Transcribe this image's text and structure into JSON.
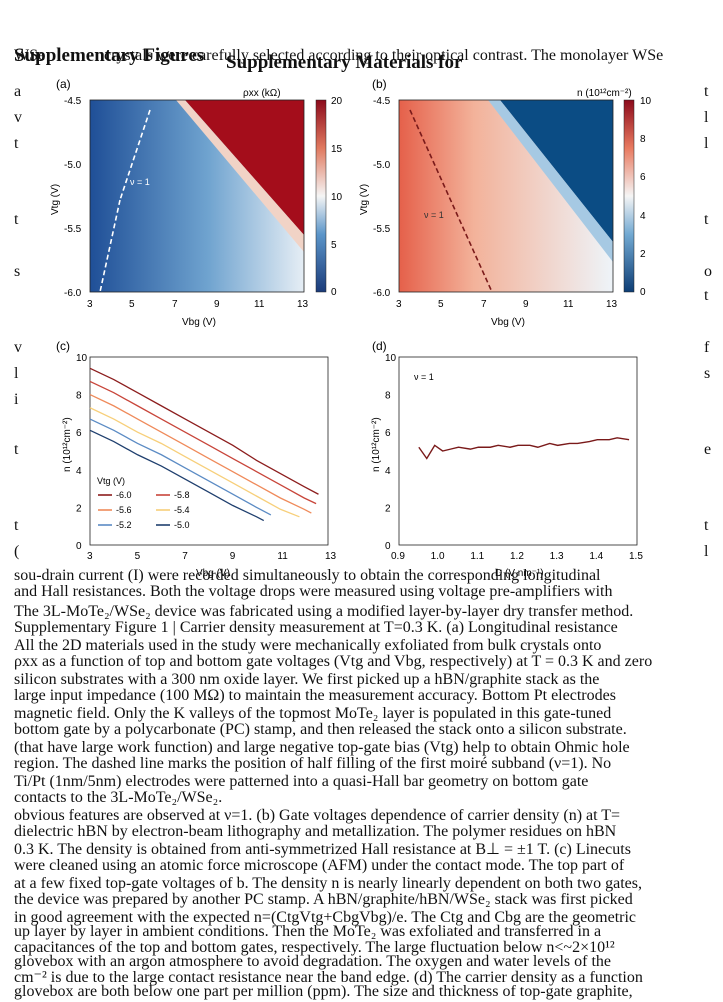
{
  "header": {
    "overlap_title": "Supplementary Figures",
    "overlap_1": "WSe",
    "overlap_2": "crystals were carefully selected according to their optical contrast. The monolayer WSe",
    "main_title": "Supplementary Materials for"
  },
  "panels": {
    "a": {
      "label": "(a)",
      "cbar_title": "ρxx (kΩ)",
      "cbar_ticks": [
        "20",
        "15",
        "10",
        "5",
        "0"
      ],
      "yticks": [
        "-4.5",
        "-5.0",
        "-5.5",
        "-6.0"
      ],
      "xticks": [
        "3",
        "5",
        "7",
        "9",
        "11",
        "13"
      ],
      "ylabel": "Vtg (V)",
      "xlabel": "Vbg (V)",
      "annotation": "ν = 1"
    },
    "b": {
      "label": "(b)",
      "cbar_title": "n (10¹²cm⁻²)",
      "cbar_ticks": [
        "10",
        "8",
        "6",
        "4",
        "2",
        "0"
      ],
      "yticks": [
        "-4.5",
        "-5.0",
        "-5.5",
        "-6.0"
      ],
      "xticks": [
        "3",
        "5",
        "7",
        "9",
        "11",
        "13"
      ],
      "ylabel": "Vtg (V)",
      "xlabel": "Vbg (V)",
      "annotation": "ν = 1"
    },
    "c": {
      "label": "(c)",
      "yticks": [
        "10",
        "8",
        "6",
        "4",
        "2",
        "0"
      ],
      "xticks": [
        "3",
        "5",
        "7",
        "9",
        "11",
        "13"
      ],
      "ylabel": "n (10¹²cm⁻²)",
      "xlabel": "Vbg (V)",
      "legend_title": "Vtg (V)"
    },
    "d": {
      "label": "(d)",
      "yticks": [
        "10",
        "8",
        "6",
        "4",
        "2",
        "0"
      ],
      "xticks": [
        "0.9",
        "1.0",
        "1.1",
        "1.2",
        "1.3",
        "1.4",
        "1.5"
      ],
      "ylabel": "n (10¹²cm⁻²)",
      "xlabel": "D (V nm⁻¹)",
      "annotation": "ν = 1"
    }
  },
  "chart_data": [
    {
      "type": "heatmap",
      "title": "(a)",
      "xlabel": "Vbg (V)",
      "ylabel": "Vtg (V)",
      "xlim": [
        3,
        13
      ],
      "ylim": [
        -6.0,
        -4.5
      ],
      "colorbar": {
        "label": "ρxx (kΩ)",
        "range": [
          0,
          20
        ]
      },
      "annotation": "ν = 1 (dashed line)"
    },
    {
      "type": "heatmap",
      "title": "(b)",
      "xlabel": "Vbg (V)",
      "ylabel": "Vtg (V)",
      "xlim": [
        3,
        13
      ],
      "ylim": [
        -6.0,
        -4.5
      ],
      "colorbar": {
        "label": "n (10¹²cm⁻²)",
        "range": [
          0,
          10
        ]
      },
      "annotation": "ν = 1 (dashed line)"
    },
    {
      "type": "line",
      "title": "(c)",
      "xlabel": "Vbg (V)",
      "ylabel": "n (10¹²cm⁻²)",
      "xlim": [
        3,
        13
      ],
      "ylim": [
        0,
        10
      ],
      "legend_title": "Vtg (V)",
      "series": [
        {
          "name": "-6.0",
          "color": "#8c1d1d",
          "x": [
            3,
            4,
            5,
            6,
            7,
            8,
            9,
            10,
            11,
            12,
            12.6
          ],
          "values": [
            9.4,
            8.8,
            8.1,
            7.4,
            6.7,
            6.0,
            5.3,
            4.5,
            3.8,
            3.1,
            2.7
          ]
        },
        {
          "name": "-5.8",
          "color": "#c8453a",
          "x": [
            3,
            4,
            5,
            6,
            7,
            8,
            9,
            10,
            11,
            12,
            12.5
          ],
          "values": [
            8.7,
            8.1,
            7.4,
            6.7,
            6.0,
            5.3,
            4.6,
            3.9,
            3.2,
            2.5,
            2.2
          ]
        },
        {
          "name": "-5.6",
          "color": "#ef8a5a",
          "x": [
            3,
            4,
            5,
            6,
            7,
            8,
            9,
            10,
            11,
            12,
            12.3
          ],
          "values": [
            8.0,
            7.4,
            6.7,
            6.0,
            5.3,
            4.6,
            3.9,
            3.2,
            2.5,
            1.9,
            1.7
          ]
        },
        {
          "name": "-5.4",
          "color": "#f7cf7a",
          "x": [
            3,
            4,
            5,
            6,
            7,
            8,
            9,
            10,
            11,
            11.8
          ],
          "values": [
            7.3,
            6.7,
            6.0,
            5.4,
            4.7,
            4.0,
            3.3,
            2.6,
            1.9,
            1.5
          ]
        },
        {
          "name": "-5.2",
          "color": "#5b8bc4",
          "x": [
            3,
            4,
            5,
            6,
            7,
            8,
            9,
            10,
            10.6
          ],
          "values": [
            6.7,
            6.1,
            5.4,
            4.8,
            4.1,
            3.4,
            2.7,
            2.0,
            1.6
          ]
        },
        {
          "name": "-5.0",
          "color": "#1f3f6e",
          "x": [
            3,
            4,
            5,
            6,
            7,
            8,
            9,
            10,
            10.3
          ],
          "values": [
            6.1,
            5.5,
            4.8,
            4.2,
            3.5,
            2.8,
            2.1,
            1.5,
            1.3
          ]
        }
      ]
    },
    {
      "type": "line",
      "title": "(d)",
      "xlabel": "D (V nm⁻¹)",
      "ylabel": "n (10¹²cm⁻²)",
      "xlim": [
        0.9,
        1.5
      ],
      "ylim": [
        0,
        10
      ],
      "annotation": "ν = 1",
      "series": [
        {
          "name": "ν = 1",
          "color": "#7a1a1a",
          "x": [
            0.95,
            0.97,
            0.99,
            1.01,
            1.03,
            1.05,
            1.08,
            1.1,
            1.13,
            1.15,
            1.18,
            1.2,
            1.23,
            1.25,
            1.28,
            1.3,
            1.33,
            1.35,
            1.38,
            1.4,
            1.43,
            1.45,
            1.48
          ],
          "values": [
            5.2,
            4.6,
            5.3,
            5.0,
            5.1,
            5.2,
            5.1,
            5.2,
            5.2,
            5.3,
            5.2,
            5.3,
            5.3,
            5.2,
            5.4,
            5.3,
            5.4,
            5.4,
            5.5,
            5.6,
            5.6,
            5.7,
            5.6
          ]
        }
      ]
    }
  ],
  "overlap_text": {
    "left_fragments": [
      "a",
      "v",
      "t",
      "t",
      "s",
      "v",
      "l",
      "i",
      "t",
      "t",
      "("
    ],
    "right_fragments": [
      "t",
      "l",
      "l",
      "t",
      "o",
      "t",
      "f",
      "s",
      "e",
      "t",
      "l"
    ],
    "lines": [
      "sou-drain current (I) were recorded simultaneously to obtain the corresponding longitudinal",
      "and Hall resistances. Both the voltage drops were measured using voltage pre-amplifiers with",
      "The 3L-MoTe₂/WSe₂ device was fabricated using a modified layer-by-layer dry transfer method.",
      "Supplementary Figure 1 | Carrier density measurement at T=0.3 K. (a) Longitudinal resistance",
      "All the 2D materials used in the study were mechanically exfoliated from bulk crystals onto",
      "ρxx as a function of top and bottom gate voltages (Vtg and Vbg, respectively) at T = 0.3 K and zero",
      "silicon substrates with a 300 nm oxide layer. We first picked up a hBN/graphite stack as the",
      "large input impedance (100 MΩ) to maintain the measurement accuracy. Bottom Pt electrodes",
      "magnetic field. Only the K valleys of the topmost MoTe₂ layer is populated in this gate-tuned",
      "bottom gate by a polycarbonate (PC) stamp, and then released the stack onto a silicon substrate.",
      "(that have large work function) and large negative top-gate bias (Vtg) help to obtain Ohmic hole",
      "region. The dashed line marks the position of half filling of the first moiré subband (ν=1). No",
      "Ti/Pt (1nm/5nm) electrodes were patterned into a quasi-Hall bar geometry on bottom gate",
      "contacts to the 3L-MoTe₂/WSe₂.",
      "obvious features are observed at ν=1. (b) Gate voltages dependence of carrier density (n) at T=",
      "dielectric hBN by electron-beam lithography and metallization. The polymer residues on hBN",
      "0.3 K. The density is obtained from anti-symmetrized Hall resistance at B⊥ = ±1 T. (c) Linecuts",
      "were cleaned using an atomic force microscope (AFM) under the contact mode. The top part of",
      "at a few fixed top-gate voltages of b. The density n is nearly linearly dependent on both two gates,",
      "the device was prepared by another PC stamp. A hBN/graphite/hBN/WSe₂ stack was first picked",
      "in good agreement with the expected n=(CtgVtg+CbgVbg)/e. The Ctg and Cbg are the geometric",
      "up layer by layer in ambient conditions. Then the MoTe₂ was exfoliated and transferred in a",
      "capacitances of the top and bottom gates, respectively. The large fluctuation below n<~2×10¹²",
      "glovebox with an argon atmosphere to avoid degradation. The oxygen and water levels of the",
      "cm⁻² is due to the large contact resistance near the band edge. (d) The carrier density as a function",
      "glovebox are both below one part per million (ppm). The size and thickness of top-gate graphite,"
    ]
  },
  "colors": {
    "heat_a_low": "#2b63a8",
    "heat_a_mid": "#d8e7f2",
    "heat_a_high": "#a40d1b",
    "heat_b_low": "#0b4c84",
    "heat_b_mid": "#eef4f8",
    "heat_b_high": "#e8674f"
  }
}
